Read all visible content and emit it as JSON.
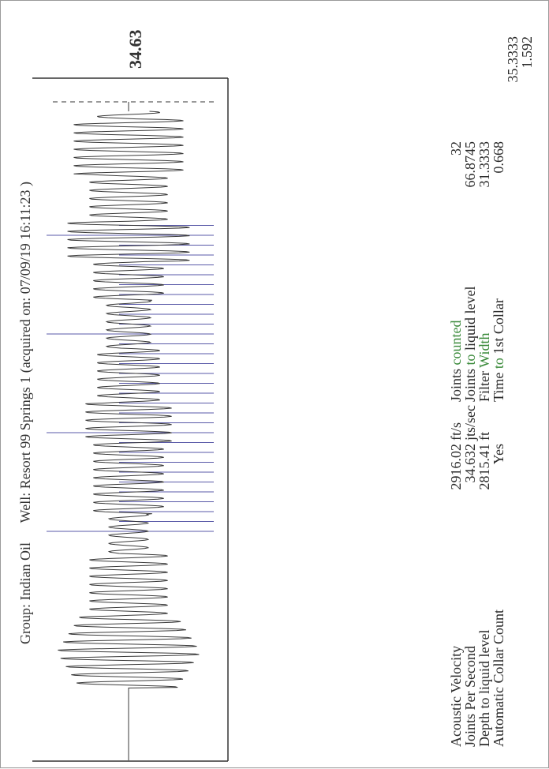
{
  "header": {
    "group_label": "Group:",
    "group_value": "Indian Oil",
    "well_label": "Well:",
    "well_value": "Resort 99 Springs 1",
    "acquired_text": "(acquired on: 07/09/19 16:11:23 )"
  },
  "marker_value": "34.63",
  "colors": {
    "trace": "#3a3a3a",
    "collar_markers": "#5a5aa8",
    "frame": "#333333",
    "accent_green": "#3a8a3a"
  },
  "left_stats": [
    {
      "label": "Acoustic Velocity",
      "value": "2916.02",
      "unit": "ft/s"
    },
    {
      "label": "Joints Per Second",
      "value": "34.632",
      "unit": "jts/sec"
    },
    {
      "label": "Depth to liquid level",
      "value": "2815.41",
      "unit": "ft"
    },
    {
      "label": "Automatic Collar Count",
      "value": "Yes",
      "unit": ""
    }
  ],
  "right_stats": [
    {
      "label_a": "Joints ",
      "label_b": "counted",
      "value1": "32",
      "value2": ""
    },
    {
      "label_a": "Joints ",
      "label_b": "to",
      "label_c": " liquid level",
      "value1": "66.8745",
      "value2": ""
    },
    {
      "label_a": "Filter ",
      "label_b": "Width",
      "value1": "31.3333",
      "value2": "35.3333"
    },
    {
      "label_a": "Time ",
      "label_b": "to",
      "label_c": " 1st Collar",
      "value1": "0.668",
      "value2": "1.592"
    }
  ]
}
